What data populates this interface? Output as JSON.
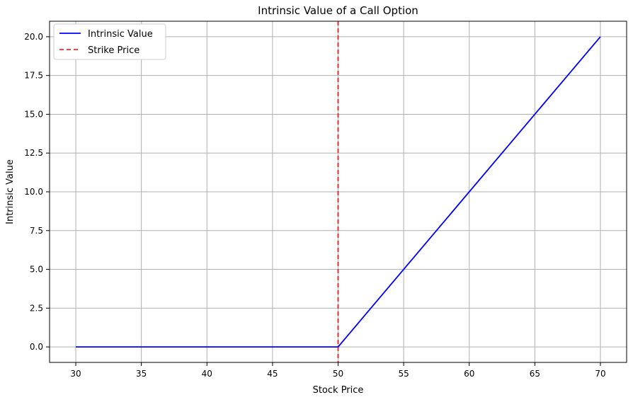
{
  "chart_data": {
    "type": "line",
    "title": "Intrinsic Value of a Call Option",
    "xlabel": "Stock Price",
    "ylabel": "Intrinsic Value",
    "xlim": [
      28,
      72
    ],
    "ylim": [
      -1,
      21
    ],
    "grid": true,
    "legend_position": "top-left",
    "x_ticks": [
      30,
      35,
      40,
      45,
      50,
      55,
      60,
      65,
      70
    ],
    "x_tick_labels": [
      "30",
      "35",
      "40",
      "45",
      "50",
      "55",
      "60",
      "65",
      "70"
    ],
    "y_ticks": [
      0,
      2.5,
      5,
      7.5,
      10,
      12.5,
      15,
      17.5,
      20
    ],
    "y_tick_labels": [
      "0.0",
      "2.5",
      "5.0",
      "7.5",
      "10.0",
      "12.5",
      "15.0",
      "17.5",
      "20.0"
    ],
    "series": [
      {
        "name": "Intrinsic Value",
        "color": "#0000ff",
        "style": "solid",
        "x": [
          30,
          50,
          70
        ],
        "y": [
          0,
          0,
          20
        ]
      }
    ],
    "vlines": [
      {
        "name": "Strike Price",
        "x": 50,
        "color": "#ff0000",
        "style": "dashed"
      }
    ]
  }
}
